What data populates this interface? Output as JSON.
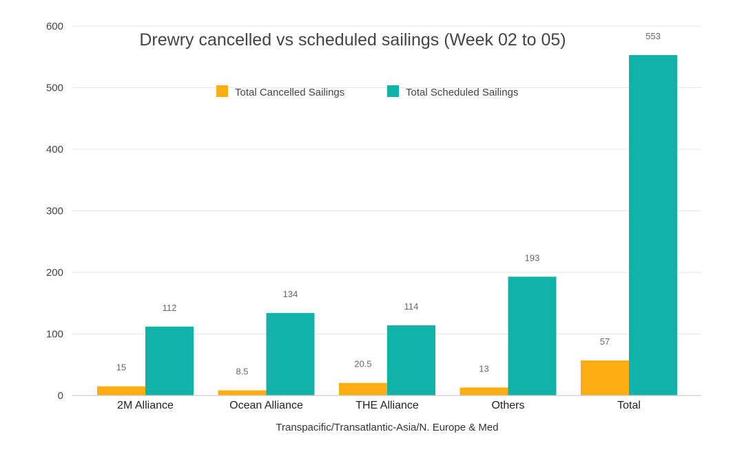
{
  "chart_data": {
    "type": "bar",
    "title": "Drewry cancelled vs scheduled sailings (Week 02 to 05)",
    "xlabel": "Transpacific/Transatlantic-Asia/N. Europe & Med",
    "ylabel": "",
    "ylim": [
      0,
      600
    ],
    "yticks": [
      "0",
      "100",
      "200",
      "300",
      "400",
      "500",
      "600"
    ],
    "grid": true,
    "legend_position": "top",
    "categories": [
      "2M Alliance",
      "Ocean Alliance",
      "THE Alliance",
      "Others",
      "Total"
    ],
    "series": [
      {
        "name": "Total Cancelled Sailings",
        "color": "#ffad14",
        "values": [
          15,
          8.5,
          20.5,
          13,
          57
        ],
        "labels": [
          "15",
          "8.5",
          "20.5",
          "13",
          "57"
        ]
      },
      {
        "name": "Total Scheduled Sailings",
        "color": "#11b3a9",
        "values": [
          112,
          134,
          114,
          193,
          553
        ],
        "labels": [
          "112",
          "134",
          "114",
          "193",
          "553"
        ]
      }
    ]
  }
}
